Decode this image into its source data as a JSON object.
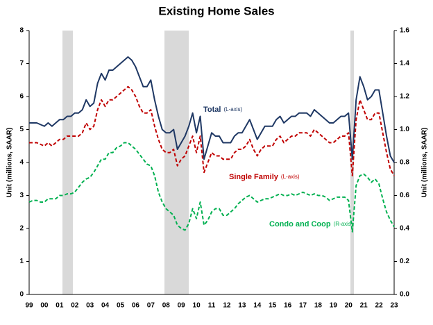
{
  "chart_data": {
    "type": "line",
    "title": "Existing Home Sales",
    "ylabel": "Unit (millions, SAAR)",
    "y2label": "Unit (millions, SAAR)",
    "categories": [
      "99",
      null,
      null,
      null,
      "00",
      null,
      null,
      null,
      "01",
      null,
      null,
      null,
      "02",
      null,
      null,
      null,
      "03",
      null,
      null,
      null,
      "04",
      null,
      null,
      null,
      "05",
      null,
      null,
      null,
      "06",
      null,
      null,
      null,
      "07",
      null,
      null,
      null,
      "08",
      null,
      null,
      null,
      "09",
      null,
      null,
      null,
      "10",
      null,
      null,
      null,
      "11",
      null,
      null,
      null,
      "12",
      null,
      null,
      null,
      "13",
      null,
      null,
      null,
      "14",
      null,
      null,
      null,
      "15",
      null,
      null,
      null,
      "16",
      null,
      null,
      null,
      "17",
      null,
      null,
      null,
      "18",
      null,
      null,
      null,
      "19",
      null,
      null,
      null,
      "20",
      null,
      null,
      null,
      "21",
      null,
      null,
      null,
      "22",
      null,
      null,
      null,
      "23"
    ],
    "ylim": [
      0,
      8
    ],
    "yticks": [
      0,
      1,
      2,
      3,
      4,
      5,
      6,
      7,
      8
    ],
    "y2lim": [
      0,
      1.6
    ],
    "y2ticks": [
      {
        "value": 0,
        "label": "0.0"
      },
      0.2,
      0.4,
      0.6,
      0.8,
      {
        "value": 1,
        "label": "1.0"
      },
      1.2,
      1.4,
      1.6
    ],
    "series": [
      {
        "name": "Total",
        "note": "(L-axis)",
        "color": "#1f3864",
        "dashed": false,
        "values": [
          5.2,
          5.2,
          5.2,
          5.15,
          5.1,
          5.2,
          5.1,
          5.2,
          5.3,
          5.3,
          5.4,
          5.4,
          5.5,
          5.5,
          5.6,
          5.9,
          5.7,
          5.8,
          6.4,
          6.7,
          6.5,
          6.8,
          6.8,
          6.9,
          7.0,
          7.1,
          7.2,
          7.1,
          6.9,
          6.6,
          6.3,
          6.3,
          6.5,
          5.9,
          5.4,
          5.0,
          4.9,
          4.9,
          5.0,
          4.4,
          4.6,
          4.8,
          5.1,
          5.5,
          4.9,
          5.4,
          4.1,
          4.5,
          4.9,
          4.8,
          4.8,
          4.6,
          4.6,
          4.6,
          4.8,
          4.9,
          4.9,
          5.1,
          5.3,
          5.0,
          4.7,
          4.9,
          5.1,
          5.1,
          5.1,
          5.3,
          5.4,
          5.2,
          5.3,
          5.4,
          5.4,
          5.5,
          5.5,
          5.5,
          5.4,
          5.6,
          5.5,
          5.4,
          5.3,
          5.2,
          5.2,
          5.3,
          5.4,
          5.4,
          5.5,
          4.1,
          5.9,
          6.6,
          6.3,
          5.9,
          6.0,
          6.2,
          6.2,
          5.5,
          4.8,
          4.2,
          4.0
        ]
      },
      {
        "name": "Single Family",
        "note": "(L-axis)",
        "color": "#c00000",
        "dashed": true,
        "values": [
          4.6,
          4.6,
          4.6,
          4.55,
          4.5,
          4.6,
          4.5,
          4.6,
          4.7,
          4.7,
          4.8,
          4.8,
          4.8,
          4.8,
          4.9,
          5.2,
          5.0,
          5.1,
          5.6,
          5.9,
          5.7,
          5.9,
          5.9,
          6.0,
          6.1,
          6.2,
          6.3,
          6.2,
          6.0,
          5.7,
          5.5,
          5.5,
          5.6,
          5.1,
          4.7,
          4.4,
          4.3,
          4.3,
          4.4,
          3.9,
          4.1,
          4.2,
          4.5,
          4.8,
          4.3,
          4.8,
          3.7,
          4.0,
          4.3,
          4.2,
          4.2,
          4.1,
          4.1,
          4.1,
          4.3,
          4.4,
          4.4,
          4.5,
          4.7,
          4.4,
          4.2,
          4.4,
          4.5,
          4.5,
          4.5,
          4.7,
          4.8,
          4.6,
          4.7,
          4.8,
          4.8,
          4.9,
          4.9,
          4.9,
          4.8,
          5.0,
          4.9,
          4.8,
          4.7,
          4.6,
          4.6,
          4.7,
          4.8,
          4.8,
          4.9,
          3.6,
          5.3,
          5.9,
          5.6,
          5.3,
          5.3,
          5.5,
          5.5,
          4.9,
          4.3,
          3.8,
          3.6
        ]
      },
      {
        "name": "Condo and Coop",
        "note": "(R-axis)",
        "color": "#00b050",
        "dashed": true,
        "axis": "y2",
        "values": [
          0.56,
          0.57,
          0.57,
          0.56,
          0.56,
          0.58,
          0.58,
          0.58,
          0.6,
          0.6,
          0.61,
          0.61,
          0.62,
          0.65,
          0.68,
          0.7,
          0.71,
          0.74,
          0.78,
          0.82,
          0.82,
          0.86,
          0.86,
          0.89,
          0.9,
          0.92,
          0.92,
          0.9,
          0.88,
          0.85,
          0.82,
          0.79,
          0.78,
          0.72,
          0.62,
          0.56,
          0.52,
          0.5,
          0.48,
          0.42,
          0.4,
          0.39,
          0.43,
          0.52,
          0.46,
          0.56,
          0.42,
          0.45,
          0.5,
          0.52,
          0.52,
          0.48,
          0.48,
          0.5,
          0.52,
          0.55,
          0.57,
          0.59,
          0.6,
          0.58,
          0.56,
          0.57,
          0.58,
          0.58,
          0.59,
          0.6,
          0.61,
          0.6,
          0.6,
          0.61,
          0.6,
          0.61,
          0.62,
          0.61,
          0.6,
          0.61,
          0.6,
          0.6,
          0.59,
          0.57,
          0.58,
          0.59,
          0.59,
          0.59,
          0.57,
          0.38,
          0.66,
          0.72,
          0.73,
          0.71,
          0.68,
          0.7,
          0.67,
          0.58,
          0.5,
          0.45,
          0.41
        ]
      }
    ]
  }
}
